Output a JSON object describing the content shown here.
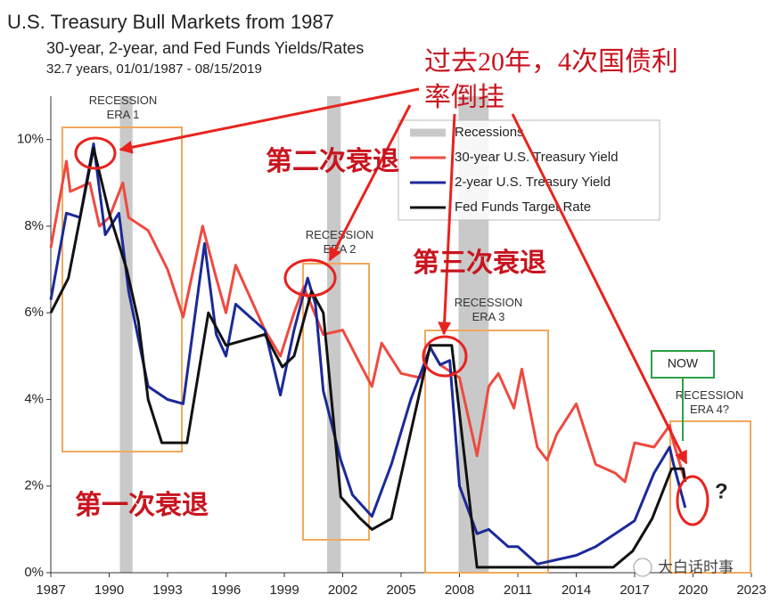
{
  "chart_data": {
    "type": "line",
    "title": "U.S. Treasury Bull Markets from 1987",
    "subtitle": "30-year, 2-year, and Fed Funds Yields/Rates",
    "caption": "32.7 years, 01/01/1987 - 08/15/2019",
    "xlim": [
      1987,
      2023
    ],
    "xticks": [
      1987,
      1990,
      1993,
      1996,
      1999,
      2002,
      2005,
      2008,
      2011,
      2014,
      2017,
      2020,
      2023
    ],
    "ylim": [
      0,
      11
    ],
    "yticks": [
      {
        "value": 0,
        "label": "0%"
      },
      {
        "value": 2,
        "label": "2%"
      },
      {
        "value": 4,
        "label": "4%"
      },
      {
        "value": 6,
        "label": "6%"
      },
      {
        "value": 8,
        "label": "8%"
      },
      {
        "value": 10,
        "label": "10%"
      }
    ],
    "recession_label": "Recessions",
    "recession_color": "#c9c9c9",
    "recessions": [
      [
        1990.55,
        1991.2
      ],
      [
        2001.2,
        2001.9
      ],
      [
        2007.95,
        2009.5
      ]
    ],
    "series": [
      {
        "name": "30-year U.S. Treasury Yield",
        "color": "#ee4a40",
        "x": [
          1987,
          1987.8,
          1988,
          1989,
          1989.5,
          1990,
          1990.7,
          1991,
          1992,
          1993,
          1993.8,
          1994.8,
          1995.5,
          1996,
          1996.5,
          1997,
          1998,
          1998.8,
          1999.5,
          2000,
          2001,
          2002,
          2002.8,
          2003.5,
          2004,
          2005,
          2006,
          2006.5,
          2007,
          2008,
          2008.9,
          2009.5,
          2010,
          2010.8,
          2011.2,
          2012,
          2012.5,
          2013,
          2014,
          2015,
          2016,
          2016.5,
          2017,
          2018,
          2018.8,
          2019,
          2019.6
        ],
        "values": [
          7.5,
          9.5,
          8.8,
          9.0,
          8.0,
          8.2,
          9.0,
          8.2,
          7.9,
          7.0,
          5.9,
          8.0,
          6.8,
          6.0,
          7.1,
          6.6,
          5.6,
          5.0,
          6.0,
          6.6,
          5.5,
          5.6,
          4.9,
          4.3,
          5.3,
          4.6,
          4.5,
          5.2,
          4.8,
          4.5,
          2.7,
          4.3,
          4.6,
          3.8,
          4.7,
          2.9,
          2.6,
          3.2,
          3.9,
          2.5,
          2.3,
          2.1,
          3.0,
          2.9,
          3.4,
          3.0,
          2.1
        ]
      },
      {
        "name": "2-year U.S. Treasury Yield",
        "color": "#1b2a98",
        "x": [
          1987,
          1987.8,
          1988.5,
          1989.2,
          1989.8,
          1990.5,
          1991,
          1992,
          1993,
          1993.8,
          1994.9,
          1995.5,
          1996,
          1996.5,
          1997,
          1998,
          1998.8,
          1999.5,
          2000.2,
          2000.6,
          2001,
          2001.9,
          2002.5,
          2003.5,
          2004.5,
          2005.5,
          2006.5,
          2007,
          2007.5,
          2008,
          2008.9,
          2009.5,
          2010.5,
          2011,
          2012,
          2013,
          2014,
          2015,
          2016,
          2017,
          2018,
          2018.8,
          2019,
          2019.6
        ],
        "values": [
          6.3,
          8.3,
          8.2,
          9.9,
          7.8,
          8.3,
          6.5,
          4.3,
          4.0,
          3.9,
          7.6,
          5.5,
          5.0,
          6.2,
          6.0,
          5.6,
          4.1,
          5.6,
          6.8,
          6.2,
          4.2,
          2.6,
          1.8,
          1.3,
          2.5,
          4.0,
          5.2,
          4.8,
          4.9,
          2.0,
          0.9,
          1.0,
          0.6,
          0.6,
          0.2,
          0.3,
          0.4,
          0.6,
          0.9,
          1.2,
          2.3,
          2.9,
          2.5,
          1.5
        ]
      },
      {
        "name": "Fed Funds Target Rate",
        "color": "#111111",
        "x": [
          1987,
          1987.9,
          1989.2,
          1990,
          1990.9,
          1991.5,
          1992,
          1992.7,
          1994,
          1995.1,
          1996,
          1998,
          1998.9,
          1999.5,
          2000.4,
          2001,
          2001.9,
          2002.9,
          2003.5,
          2004.5,
          2006.5,
          2007.6,
          2008.9,
          2015.9,
          2016.9,
          2017.9,
          2018.9,
          2019.5,
          2019.6
        ],
        "values": [
          6.0,
          6.8,
          9.8,
          8.3,
          7.0,
          5.8,
          4.0,
          3.0,
          3.0,
          6.0,
          5.25,
          5.5,
          4.75,
          5.0,
          6.5,
          6.0,
          1.75,
          1.25,
          1.0,
          1.25,
          5.25,
          5.25,
          0.125,
          0.125,
          0.5,
          1.25,
          2.4,
          2.4,
          2.1
        ]
      }
    ],
    "annotations": {
      "era1": [
        "RECESSION",
        "ERA 1"
      ],
      "era2": [
        "RECESSION",
        "ERA 2"
      ],
      "era3": [
        "RECESSION",
        "ERA 3"
      ],
      "era4": [
        "RECESSION",
        "ERA 4?"
      ],
      "now": "NOW",
      "question": "?",
      "headline": [
        "过去20年，4次国债利",
        "率倒挂"
      ],
      "first": "第一次衰退",
      "second": "第二次衰退",
      "third": "第三次衰退",
      "watermark": "大白话时事"
    }
  }
}
